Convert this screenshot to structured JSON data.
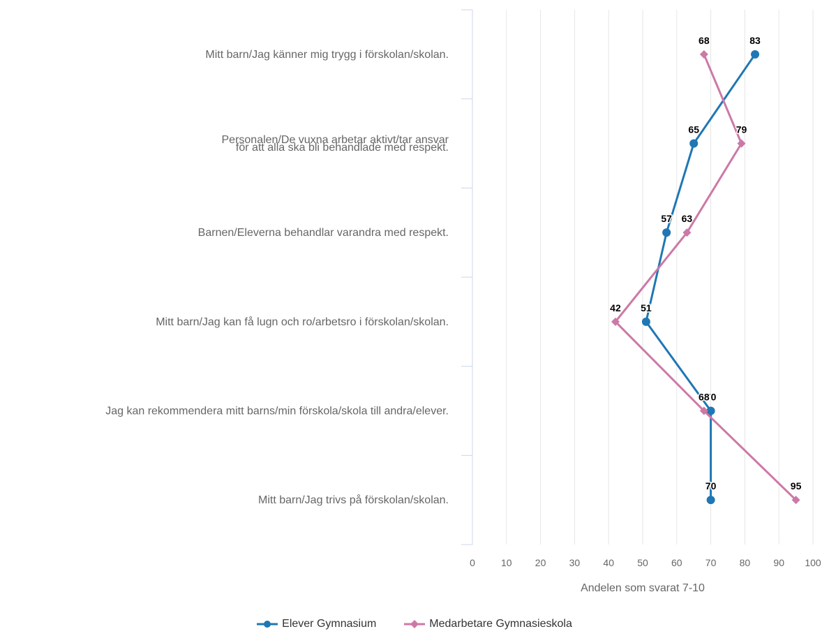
{
  "chart_data": {
    "type": "line",
    "orientation": "horizontal-categories",
    "categories": [
      [
        "Mitt barn/Jag känner mig trygg i förskolan/skolan."
      ],
      [
        "Personalen/De vuxna arbetar aktivt/tar ansvar",
        "för att alla ska bli behandlade med respekt."
      ],
      [
        "Barnen/Eleverna behandlar varandra med respekt."
      ],
      [
        "Mitt barn/Jag kan få lugn och ro/arbetsro i förskolan/skolan."
      ],
      [
        "Jag kan rekommendera mitt barns/min förskola/skola till andra/elever."
      ],
      [
        "Mitt barn/Jag trivs på förskolan/skolan."
      ]
    ],
    "series": [
      {
        "name": "Elever Gymnasium",
        "color": "#1f77b4",
        "marker": "circle",
        "values": [
          83,
          65,
          57,
          51,
          70,
          70
        ],
        "labels": [
          "83",
          "65",
          "57",
          "51",
          "70",
          "70"
        ]
      },
      {
        "name": "Medarbetare Gymnasieskola",
        "color": "#cc79a7",
        "marker": "diamond",
        "values": [
          68,
          79,
          63,
          42,
          68,
          95
        ],
        "labels": [
          "68",
          "79",
          "63",
          "42",
          "68",
          "95"
        ]
      }
    ],
    "xlabel": "Andelen som svarat 7-10",
    "xlim": [
      0,
      100
    ],
    "xticks": [
      "0",
      "10",
      "20",
      "30",
      "40",
      "50",
      "60",
      "70",
      "80",
      "90",
      "100"
    ],
    "grid": "vertical",
    "legend": "bottom-center"
  }
}
